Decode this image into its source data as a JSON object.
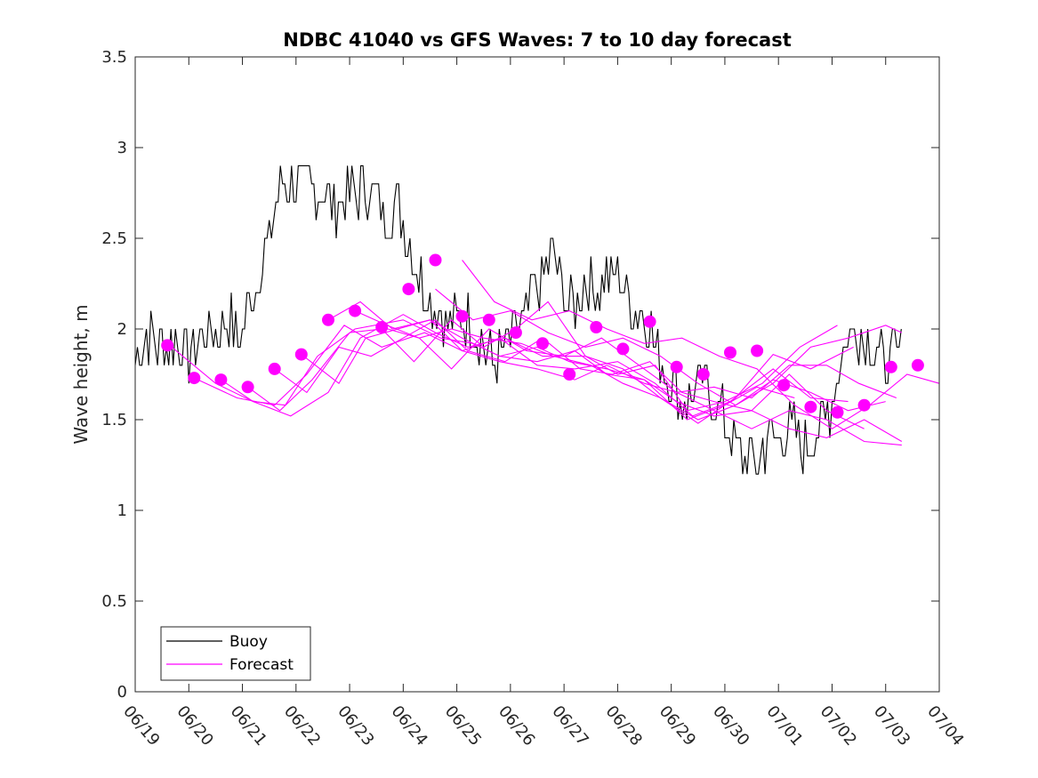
{
  "chart_data": {
    "type": "line",
    "title": "NDBC 41040 vs GFS Waves: 7 to 10 day forecast",
    "ylabel": "Wave height, m",
    "xlabel": "",
    "xlim": [
      0,
      15
    ],
    "ylim": [
      0,
      3.5
    ],
    "x_tick_labels": [
      "06/19",
      "06/20",
      "06/21",
      "06/22",
      "06/23",
      "06/24",
      "06/25",
      "06/26",
      "06/27",
      "06/28",
      "06/29",
      "06/30",
      "07/01",
      "07/02",
      "07/03",
      "07/04"
    ],
    "y_ticks": [
      0,
      0.5,
      1,
      1.5,
      2,
      2.5,
      3,
      3.5
    ],
    "y_tick_labels": [
      "0",
      "0.5",
      "1",
      "1.5",
      "2",
      "2.5",
      "3",
      "3.5"
    ],
    "grid": false,
    "legend": {
      "position": "bottom-left",
      "entries": [
        {
          "label": "Buoy",
          "color": "#000000"
        },
        {
          "label": "Forecast",
          "color": "#ff00ff"
        }
      ]
    },
    "colors": {
      "buoy": "#000000",
      "forecast": "#ff00ff"
    },
    "buoy_anchors": {
      "x": [
        0,
        0.2,
        0.5,
        0.8,
        1.0,
        1.3,
        1.6,
        1.8,
        1.9,
        2.1,
        2.3,
        2.5,
        2.7,
        2.9,
        3.1,
        3.3,
        3.5,
        3.7,
        3.9,
        4.1,
        4.3,
        4.5,
        4.7,
        4.9,
        5.1,
        5.3,
        5.5,
        5.7,
        5.9,
        6.1,
        6.3,
        6.5,
        6.7,
        6.8,
        7.0,
        7.2,
        7.4,
        7.6,
        7.8,
        8.0,
        8.2,
        8.4,
        8.6,
        8.8,
        9.0,
        9.2,
        9.4,
        9.6,
        9.8,
        10.0,
        10.2,
        10.4,
        10.6,
        10.8,
        11.0,
        11.2,
        11.4,
        11.6,
        11.8,
        12.0,
        12.2,
        12.4,
        12.6,
        12.8,
        13.0,
        13.2,
        13.4,
        13.6,
        13.8,
        14.0,
        14.2,
        14.3
      ],
      "y": [
        1.85,
        1.95,
        1.9,
        1.95,
        1.85,
        1.98,
        2.0,
        2.05,
        1.9,
        2.1,
        2.3,
        2.5,
        2.8,
        2.8,
        2.8,
        2.8,
        2.75,
        2.7,
        2.7,
        2.75,
        2.8,
        2.7,
        2.6,
        2.7,
        2.5,
        2.3,
        2.2,
        2.1,
        2.0,
        2.1,
        2.0,
        1.9,
        1.8,
        1.85,
        1.95,
        2.0,
        2.2,
        2.3,
        2.4,
        2.2,
        2.1,
        2.3,
        2.2,
        2.3,
        2.3,
        2.2,
        2.1,
        2.0,
        1.8,
        1.7,
        1.6,
        1.65,
        1.7,
        1.6,
        1.5,
        1.35,
        1.3,
        1.25,
        1.4,
        1.4,
        1.5,
        1.35,
        1.4,
        1.45,
        1.6,
        1.9,
        2.0,
        1.95,
        1.9,
        1.8,
        1.85,
        1.9
      ],
      "buoy_end": 14.3
    },
    "series": [
      {
        "name": "Buoy",
        "kind": "buoy-line"
      },
      {
        "name": "Forecast",
        "kind": "forecast-lines",
        "lines": [
          {
            "x": [
              0.6,
              1.5,
              2.2,
              2.8,
              3.4,
              4.1,
              5.0,
              5.7,
              6.3,
              6.8,
              7.5,
              8.2,
              8.8,
              9.5,
              10.3,
              11.0,
              11.6,
              12.3
            ],
            "y": [
              1.92,
              1.7,
              1.6,
              1.58,
              1.85,
              2.0,
              2.05,
              1.95,
              1.92,
              1.85,
              1.82,
              1.88,
              1.75,
              1.72,
              1.5,
              1.58,
              1.68,
              1.62
            ]
          },
          {
            "x": [
              1.1,
              1.9,
              2.6,
              3.2,
              3.9,
              4.6,
              5.4,
              6.1,
              6.8,
              7.5,
              8.2,
              9.0,
              9.7,
              10.4,
              11.1,
              11.9,
              12.6,
              13.3
            ],
            "y": [
              1.73,
              1.62,
              1.58,
              1.75,
              2.02,
              1.9,
              1.98,
              1.88,
              1.95,
              1.8,
              1.78,
              1.82,
              1.7,
              1.52,
              1.6,
              1.78,
              1.62,
              1.6
            ]
          },
          {
            "x": [
              1.6,
              2.2,
              2.9,
              3.6,
              4.2,
              5.0,
              5.6,
              6.2,
              6.9,
              7.6,
              8.4,
              9.1,
              9.8,
              10.5,
              11.2,
              11.9,
              12.6,
              13.4
            ],
            "y": [
              1.72,
              1.6,
              1.52,
              1.65,
              1.95,
              2.08,
              1.98,
              1.9,
              1.95,
              1.85,
              1.85,
              1.78,
              1.62,
              1.48,
              1.62,
              1.86,
              1.78,
              1.9
            ]
          },
          {
            "x": [
              2.1,
              2.7,
              3.3,
              4.0,
              4.6,
              5.2,
              5.9,
              6.5,
              7.1,
              7.7,
              8.4,
              9.0,
              9.7,
              10.3,
              11.0,
              11.7,
              12.4,
              13.1
            ],
            "y": [
              1.68,
              1.55,
              1.72,
              1.98,
              2.0,
              1.82,
              2.05,
              1.9,
              2.0,
              2.15,
              1.85,
              1.75,
              1.8,
              1.55,
              1.6,
              1.7,
              1.9,
              2.02
            ]
          },
          {
            "x": [
              2.6,
              3.2,
              3.8,
              4.4,
              5.0,
              5.6,
              6.2,
              6.9,
              7.6,
              8.3,
              8.9,
              9.6,
              10.2,
              10.8,
              11.5,
              12.2,
              12.9,
              13.6
            ],
            "y": [
              1.78,
              1.65,
              1.9,
              1.85,
              1.95,
              2.05,
              1.88,
              1.82,
              1.95,
              1.78,
              1.75,
              1.82,
              1.65,
              1.6,
              1.55,
              1.75,
              1.55,
              1.45
            ]
          },
          {
            "x": [
              3.1,
              3.8,
              4.3,
              4.9,
              5.5,
              6.1,
              6.8,
              7.5,
              8.2,
              8.8,
              9.5,
              10.1,
              10.8,
              11.5,
              12.2,
              12.9,
              13.6,
              14.3
            ],
            "y": [
              1.86,
              1.7,
              1.95,
              2.0,
              2.05,
              1.88,
              1.82,
              1.78,
              1.72,
              1.8,
              1.7,
              1.65,
              1.55,
              1.45,
              1.55,
              1.5,
              1.38,
              1.36
            ]
          },
          {
            "x": [
              3.6,
              4.2,
              4.8,
              5.5,
              6.1,
              6.8,
              7.5,
              8.1,
              8.8,
              9.5,
              10.1,
              10.8,
              11.5,
              12.2,
              12.9,
              13.6,
              14.3
            ],
            "y": [
              2.05,
              2.15,
              2.0,
              2.05,
              1.95,
              1.85,
              1.9,
              1.82,
              1.78,
              1.72,
              1.6,
              1.52,
              1.55,
              1.45,
              1.4,
              1.5,
              1.38
            ]
          },
          {
            "x": [
              4.1,
              4.7,
              5.3,
              5.9,
              6.5,
              7.2,
              7.8,
              8.5,
              9.1,
              9.8,
              10.5,
              11.2,
              11.9,
              12.6,
              13.3,
              14.0
            ],
            "y": [
              2.1,
              2.02,
              1.95,
              2.0,
              1.95,
              1.92,
              1.85,
              1.8,
              1.7,
              1.62,
              1.5,
              1.58,
              1.72,
              1.65,
              1.55,
              1.6
            ]
          },
          {
            "x": [
              4.6,
              5.3,
              5.9,
              6.6,
              7.3,
              8.0,
              8.7,
              9.4,
              10.1,
              10.8,
              11.5,
              12.2,
              12.9,
              13.5,
              14.2
            ],
            "y": [
              2.01,
              1.95,
              1.78,
              2.0,
              1.88,
              1.85,
              1.95,
              1.8,
              1.65,
              1.68,
              1.62,
              1.8,
              1.8,
              1.7,
              1.62
            ]
          },
          {
            "x": [
              5.6,
              6.3,
              7.0,
              7.7,
              8.4,
              9.1,
              9.8,
              10.5,
              11.2,
              11.9,
              12.6,
              13.3,
              14.0,
              14.3
            ],
            "y": [
              2.22,
              2.05,
              2.1,
              1.98,
              1.9,
              1.95,
              1.85,
              1.7,
              1.58,
              1.7,
              1.9,
              1.95,
              2.02,
              1.98
            ]
          },
          {
            "x": [
              6.1,
              6.7,
              7.4,
              8.1,
              8.8,
              9.5,
              10.2,
              10.9,
              11.6,
              12.3,
              13.0,
              13.7,
              14.4,
              15.0
            ],
            "y": [
              2.38,
              2.15,
              2.05,
              2.1,
              2.0,
              1.92,
              1.95,
              1.85,
              1.78,
              1.58,
              1.45,
              1.58,
              1.75,
              1.7
            ]
          }
        ],
        "markers": {
          "x": [
            0.6,
            1.1,
            1.6,
            2.1,
            2.6,
            3.1,
            3.6,
            4.1,
            4.6,
            5.1,
            5.6,
            6.1,
            6.6,
            7.1,
            7.6,
            8.1,
            8.6,
            9.1,
            9.6,
            10.1,
            10.6,
            11.1,
            11.6,
            12.1,
            12.6,
            13.1,
            13.6,
            14.1,
            14.6
          ],
          "y": [
            1.91,
            1.73,
            1.72,
            1.68,
            1.78,
            1.86,
            2.05,
            2.1,
            2.01,
            2.22,
            2.38,
            2.07,
            2.05,
            1.98,
            1.92,
            1.75,
            2.01,
            1.89,
            2.04,
            1.79,
            1.75,
            1.87,
            1.88,
            1.69,
            1.57,
            1.54,
            1.58,
            1.79,
            1.8
          ]
        }
      }
    ]
  }
}
